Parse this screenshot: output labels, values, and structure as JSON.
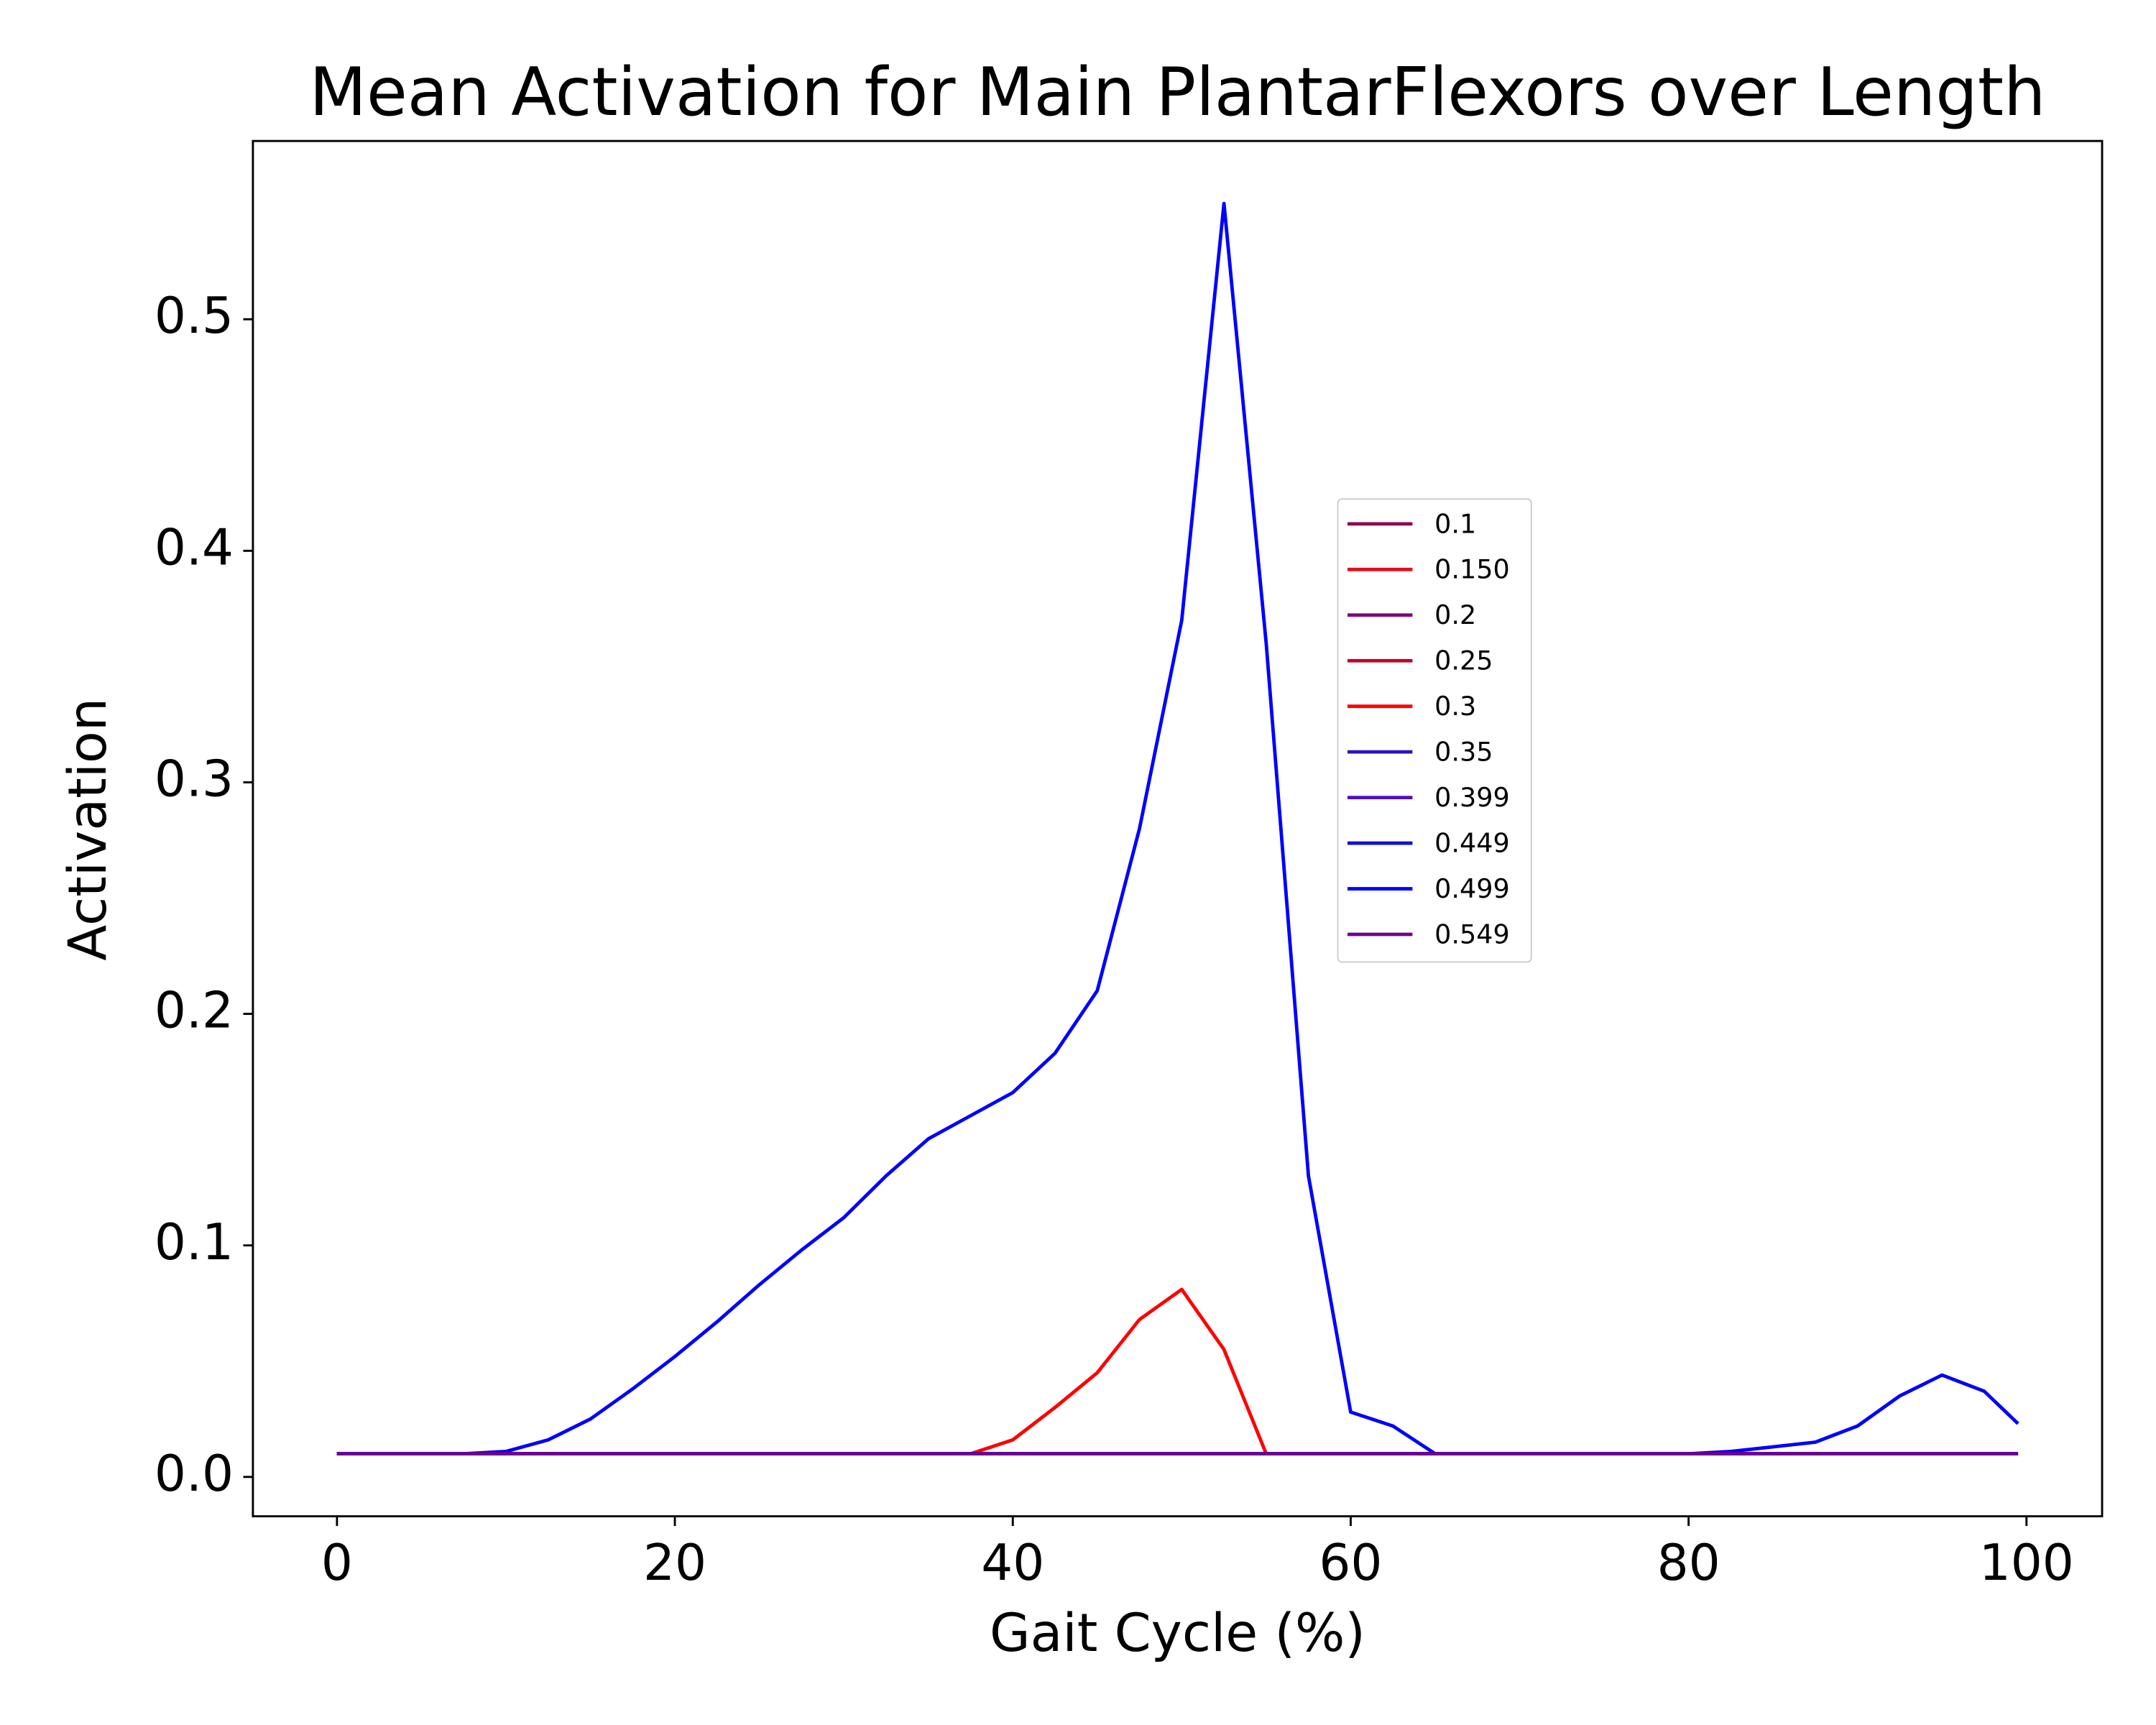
{
  "chart_data": {
    "type": "line",
    "title": "Mean Activation for Main PlantarFlexors over Length",
    "x_label": "Gait Cycle (%)",
    "y_label": "Activation",
    "x": [
      0,
      2.5,
      5,
      7.5,
      10,
      12.5,
      15,
      17.5,
      20,
      22.5,
      25,
      27.5,
      30,
      32.5,
      35,
      37.5,
      40,
      42.5,
      45,
      47.5,
      50,
      52.5,
      55,
      57.5,
      60,
      62.5,
      65,
      67.5,
      70,
      72.5,
      75,
      77.5,
      80,
      82.5,
      85,
      87.5,
      90,
      92.5,
      95,
      97.5,
      99.5
    ],
    "series": [
      {
        "name": "0.1",
        "color": "#8b0a50",
        "values": [
          0.01,
          0.01,
          0.01,
          0.01,
          0.01,
          0.01,
          0.01,
          0.01,
          0.01,
          0.01,
          0.01,
          0.01,
          0.01,
          0.01,
          0.01,
          0.01,
          0.01,
          0.01,
          0.01,
          0.01,
          0.01,
          0.01,
          0.01,
          0.01,
          0.01,
          0.01,
          0.01,
          0.01,
          0.01,
          0.01,
          0.01,
          0.01,
          0.01,
          0.01,
          0.01,
          0.01,
          0.01,
          0.01,
          0.01,
          0.01,
          0.01
        ]
      },
      {
        "name": "0.150",
        "color": "#e0101f",
        "values": [
          0.01,
          0.01,
          0.01,
          0.01,
          0.01,
          0.01,
          0.01,
          0.01,
          0.01,
          0.01,
          0.01,
          0.01,
          0.01,
          0.01,
          0.01,
          0.01,
          0.01,
          0.01,
          0.01,
          0.01,
          0.01,
          0.01,
          0.01,
          0.01,
          0.01,
          0.01,
          0.01,
          0.01,
          0.01,
          0.01,
          0.01,
          0.01,
          0.01,
          0.01,
          0.01,
          0.01,
          0.01,
          0.01,
          0.01,
          0.01,
          0.01
        ]
      },
      {
        "name": "0.2",
        "color": "#800080",
        "values": [
          0.01,
          0.01,
          0.01,
          0.01,
          0.01,
          0.01,
          0.01,
          0.01,
          0.01,
          0.01,
          0.01,
          0.01,
          0.01,
          0.01,
          0.01,
          0.01,
          0.01,
          0.01,
          0.01,
          0.01,
          0.01,
          0.01,
          0.01,
          0.01,
          0.01,
          0.01,
          0.01,
          0.01,
          0.01,
          0.01,
          0.01,
          0.01,
          0.01,
          0.01,
          0.01,
          0.01,
          0.01,
          0.01,
          0.01,
          0.01,
          0.01
        ]
      },
      {
        "name": "0.25",
        "color": "#c00030",
        "values": [
          0.01,
          0.01,
          0.01,
          0.01,
          0.01,
          0.01,
          0.01,
          0.01,
          0.01,
          0.01,
          0.01,
          0.01,
          0.01,
          0.01,
          0.01,
          0.01,
          0.01,
          0.01,
          0.01,
          0.01,
          0.01,
          0.01,
          0.01,
          0.01,
          0.01,
          0.01,
          0.01,
          0.01,
          0.01,
          0.01,
          0.01,
          0.01,
          0.01,
          0.01,
          0.01,
          0.01,
          0.01,
          0.01,
          0.01,
          0.01,
          0.01
        ]
      },
      {
        "name": "0.3",
        "color": "#ff0000",
        "values": [
          0.01,
          0.01,
          0.01,
          0.01,
          0.01,
          0.01,
          0.01,
          0.01,
          0.01,
          0.01,
          0.01,
          0.01,
          0.01,
          0.01,
          0.01,
          0.01,
          0.016,
          0.03,
          0.045,
          0.068,
          0.081,
          0.055,
          0.01,
          0.01,
          0.01,
          0.01,
          0.01,
          0.01,
          0.01,
          0.01,
          0.01,
          0.01,
          0.01,
          0.01,
          0.01,
          0.01,
          0.01,
          0.01,
          0.01,
          0.01,
          0.01
        ]
      },
      {
        "name": "0.35",
        "color": "#3010c0",
        "values": [
          0.01,
          0.01,
          0.01,
          0.01,
          0.01,
          0.01,
          0.01,
          0.01,
          0.01,
          0.01,
          0.01,
          0.01,
          0.01,
          0.01,
          0.01,
          0.01,
          0.01,
          0.01,
          0.01,
          0.01,
          0.01,
          0.01,
          0.01,
          0.01,
          0.01,
          0.01,
          0.01,
          0.01,
          0.01,
          0.01,
          0.01,
          0.01,
          0.01,
          0.01,
          0.01,
          0.01,
          0.01,
          0.01,
          0.01,
          0.01,
          0.01
        ]
      },
      {
        "name": "0.399",
        "color": "#5010c0",
        "values": [
          0.01,
          0.01,
          0.01,
          0.01,
          0.01,
          0.01,
          0.01,
          0.01,
          0.01,
          0.01,
          0.01,
          0.01,
          0.01,
          0.01,
          0.01,
          0.01,
          0.01,
          0.01,
          0.01,
          0.01,
          0.01,
          0.01,
          0.01,
          0.01,
          0.01,
          0.01,
          0.01,
          0.01,
          0.01,
          0.01,
          0.01,
          0.01,
          0.01,
          0.01,
          0.01,
          0.01,
          0.01,
          0.01,
          0.01,
          0.01,
          0.01
        ]
      },
      {
        "name": "0.449",
        "color": "#1010d0",
        "values": [
          0.01,
          0.01,
          0.01,
          0.01,
          0.01,
          0.01,
          0.01,
          0.01,
          0.01,
          0.01,
          0.01,
          0.01,
          0.01,
          0.01,
          0.01,
          0.01,
          0.01,
          0.01,
          0.01,
          0.01,
          0.01,
          0.01,
          0.01,
          0.01,
          0.01,
          0.01,
          0.01,
          0.01,
          0.01,
          0.01,
          0.01,
          0.01,
          0.01,
          0.01,
          0.01,
          0.01,
          0.01,
          0.01,
          0.01,
          0.01,
          0.01
        ]
      },
      {
        "name": "0.499",
        "color": "#0000ff",
        "values": [
          0.01,
          0.01,
          0.01,
          0.01,
          0.011,
          0.016,
          0.025,
          0.038,
          0.052,
          0.067,
          0.083,
          0.098,
          0.112,
          0.13,
          0.146,
          0.156,
          0.166,
          0.183,
          0.21,
          0.28,
          0.37,
          0.55,
          0.36,
          0.13,
          0.028,
          0.022,
          0.01,
          0.01,
          0.01,
          0.01,
          0.01,
          0.01,
          0.01,
          0.011,
          0.013,
          0.015,
          0.022,
          0.035,
          0.044,
          0.037,
          0.023
        ]
      },
      {
        "name": "0.549",
        "color": "#700090",
        "values": [
          0.01,
          0.01,
          0.01,
          0.01,
          0.01,
          0.01,
          0.01,
          0.01,
          0.01,
          0.01,
          0.01,
          0.01,
          0.01,
          0.01,
          0.01,
          0.01,
          0.01,
          0.01,
          0.01,
          0.01,
          0.01,
          0.01,
          0.01,
          0.01,
          0.01,
          0.01,
          0.01,
          0.01,
          0.01,
          0.01,
          0.01,
          0.01,
          0.01,
          0.01,
          0.01,
          0.01,
          0.01,
          0.01,
          0.01,
          0.01,
          0.01
        ]
      }
    ],
    "xlim": [
      -4.975,
      104.475
    ],
    "ylim": [
      -0.017,
      0.577
    ],
    "xticks": [
      0,
      20,
      40,
      60,
      80,
      100
    ],
    "yticks": [
      {
        "value": 0,
        "label": "0.0"
      },
      0.1,
      0.2,
      0.3,
      0.4,
      0.5
    ],
    "grid": false,
    "legend": "center right"
  }
}
